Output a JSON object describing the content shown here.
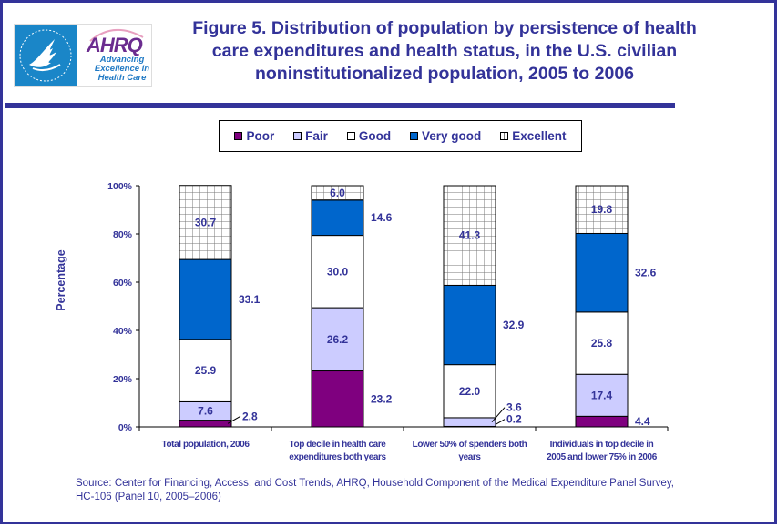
{
  "header": {
    "title": "Figure 5. Distribution of population by persistence of health care expenditures and health status, in the U.S. civilian noninstitutionalized population, 2005 to 2006",
    "title_lines": [
      "Figure 5. Distribution of population by persistence of health",
      "care expenditures and health status, in the U.S. civilian",
      "noninstitutionalized population, 2005 to 2006"
    ],
    "logo": {
      "org_word": "AHRQ",
      "tagline_lines": [
        "Advancing",
        "Excellence in",
        "Health Care"
      ],
      "seal_icon": "hhs-eagle-seal-icon"
    }
  },
  "colors": {
    "frame": "#333399",
    "text": "#333399",
    "Poor": "#7f007f",
    "Fair": "#ccccff",
    "Good": "#ffffff",
    "Very good": "#0066cc",
    "Excellent": "#ffffff"
  },
  "chart_data": {
    "type": "bar",
    "stacked": true,
    "title": "Figure 5. Distribution of population by persistence of health care expenditures and health status, in the U.S. civilian noninstitutionalized population, 2005 to 2006",
    "xlabel": "",
    "ylabel": "Percentage",
    "ylim": [
      0,
      100
    ],
    "yticks": [
      "0%",
      "20%",
      "40%",
      "60%",
      "80%",
      "100%"
    ],
    "grid": false,
    "legend_position": "top",
    "categories": [
      "Total population, 2006",
      "Top decile in health care expenditures both years",
      "Lower 50% of spenders both years",
      "Individuals in top decile in 2005 and lower 75% in 2006"
    ],
    "category_lines": [
      [
        "Total population, 2006"
      ],
      [
        "Top decile in health care",
        "expenditures both years"
      ],
      [
        "Lower 50% of spenders both",
        "years"
      ],
      [
        "Individuals in top decile in",
        "2005 and lower 75% in 2006"
      ]
    ],
    "series": [
      {
        "name": "Poor",
        "values": [
          2.8,
          23.2,
          0.2,
          4.4
        ],
        "labels": [
          "2.8",
          "23.2",
          "0.2",
          "4.4"
        ]
      },
      {
        "name": "Fair",
        "values": [
          7.6,
          26.2,
          3.6,
          17.4
        ],
        "labels": [
          "7.6",
          "26.2",
          "3.6",
          "17.4"
        ]
      },
      {
        "name": "Good",
        "values": [
          25.9,
          30.0,
          22.0,
          25.8
        ],
        "labels": [
          "25.9",
          "30.0",
          "22.0",
          "25.8"
        ]
      },
      {
        "name": "Very good",
        "values": [
          33.1,
          14.6,
          32.9,
          32.6
        ],
        "labels": [
          "33.1",
          "14.6",
          "32.9",
          "32.6"
        ]
      },
      {
        "name": "Excellent",
        "values": [
          30.7,
          6.0,
          41.3,
          19.8
        ],
        "labels": [
          "30.7",
          "6.0",
          "41.3",
          "19.8"
        ]
      }
    ]
  },
  "legend": {
    "items": [
      {
        "label": "Poor"
      },
      {
        "label": "Fair"
      },
      {
        "label": "Good"
      },
      {
        "label": "Very good"
      },
      {
        "label": "Excellent"
      }
    ]
  },
  "footer": {
    "source_line1": "Source: Center for Financing, Access, and Cost Trends, AHRQ, Household Component of the Medical Expenditure Panel Survey,",
    "source_line2": "HC-106 (Panel 10, 2005–2006)"
  }
}
